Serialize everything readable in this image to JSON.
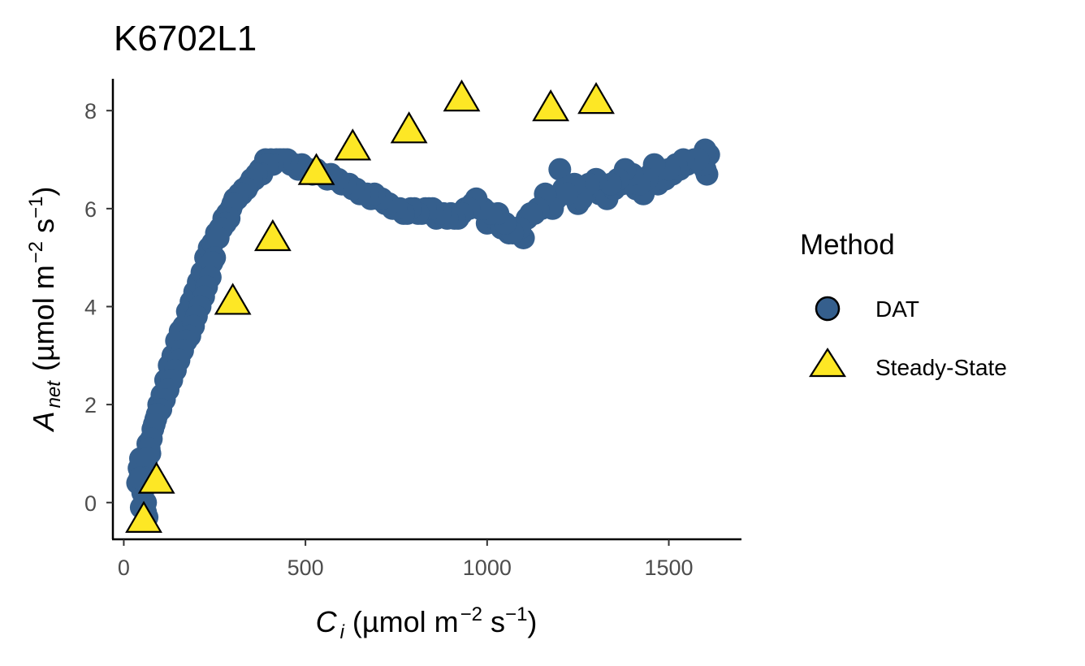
{
  "chart_data": {
    "type": "scatter",
    "title": "K6702L1",
    "xlabel": {
      "main": "C",
      "sub": "i",
      "units_pre": "(µmol m",
      "sup1": "−2",
      "units_mid": " s",
      "sup2": "−1",
      "units_post": ")"
    },
    "ylabel": {
      "main": "A",
      "sub": "net",
      "units_pre": "(µmol m",
      "sup1": "−2",
      "units_mid": " s",
      "sup2": "−1",
      "units_post": ")"
    },
    "xlim": [
      -30,
      1700
    ],
    "ylim": [
      -0.75,
      8.65
    ],
    "xticks": [
      0,
      500,
      1000,
      1500
    ],
    "xtick_labels": [
      "0",
      "500",
      "1000",
      "1500"
    ],
    "yticks": [
      0,
      2,
      4,
      6,
      8
    ],
    "ytick_labels": [
      "0",
      "2",
      "4",
      "6",
      "8"
    ],
    "grid": false,
    "legend": {
      "title": "Method",
      "position": "right"
    },
    "series": [
      {
        "name": "DAT",
        "marker": "circle",
        "color": "#355F8D",
        "x": [
          38,
          42,
          46,
          50,
          55,
          60,
          66,
          72,
          80,
          88,
          96,
          105,
          115,
          125,
          135,
          145,
          155,
          165,
          175,
          185,
          195,
          205,
          215,
          225,
          235,
          245,
          255,
          265,
          275,
          285,
          295,
          305,
          318,
          330,
          345,
          360,
          375,
          390,
          405,
          420,
          440,
          460,
          480,
          500,
          520,
          540,
          560,
          580,
          600,
          620,
          640,
          660,
          680,
          700,
          720,
          740,
          760,
          780,
          800,
          820,
          840,
          860,
          880,
          900,
          920,
          940,
          960,
          980,
          1000,
          1020,
          1040,
          1060,
          1080,
          1100,
          1110,
          1130,
          1150,
          1170,
          1190,
          1200,
          1210,
          1230,
          1250,
          1270,
          1290,
          1310,
          1330,
          1350,
          1370,
          1390,
          1410,
          1430,
          1450,
          1470,
          1490,
          1510,
          1530,
          1550,
          1570,
          1590,
          1600,
          1610
        ],
        "y": [
          0.4,
          0.7,
          0.9,
          0.6,
          0.3,
          0.0,
          1.2,
          1.0,
          1.5,
          1.7,
          2.0,
          2.2,
          2.5,
          2.8,
          3.0,
          3.3,
          3.5,
          3.6,
          3.9,
          4.1,
          4.3,
          4.5,
          4.7,
          5.0,
          5.2,
          5.3,
          5.5,
          5.6,
          5.8,
          5.9,
          6.0,
          6.2,
          6.3,
          6.4,
          6.5,
          6.6,
          6.8,
          7.0,
          7.0,
          7.0,
          7.0,
          6.9,
          6.8,
          6.8,
          6.7,
          6.7,
          6.6,
          6.6,
          6.5,
          6.5,
          6.4,
          6.3,
          6.2,
          6.2,
          6.1,
          6.0,
          6.0,
          5.9,
          6.0,
          5.9,
          6.0,
          5.8,
          5.9,
          5.9,
          5.8,
          6.0,
          6.1,
          6.0,
          5.7,
          5.8,
          5.6,
          5.5,
          5.6,
          5.4,
          5.8,
          5.9,
          6.0,
          6.1,
          6.2,
          6.8,
          6.4,
          6.3,
          6.1,
          6.4,
          6.5,
          6.3,
          6.2,
          6.4,
          6.5,
          6.6,
          6.4,
          6.3,
          6.7,
          6.5,
          6.6,
          6.7,
          6.8,
          6.9,
          7.0,
          6.9,
          6.8,
          7.1
        ],
        "extra_points": [
          [
            1600,
            7.2
          ],
          [
            1605,
            6.7
          ],
          [
            1595,
            6.9
          ],
          [
            1580,
            7.0
          ],
          [
            1540,
            7.0
          ],
          [
            1520,
            6.9
          ],
          [
            1500,
            6.8
          ],
          [
            1460,
            6.9
          ],
          [
            1440,
            6.6
          ],
          [
            1420,
            6.5
          ],
          [
            1400,
            6.7
          ],
          [
            1380,
            6.8
          ],
          [
            1360,
            6.6
          ],
          [
            1340,
            6.5
          ],
          [
            1300,
            6.6
          ],
          [
            1280,
            6.5
          ],
          [
            1260,
            6.2
          ],
          [
            1240,
            6.5
          ],
          [
            1220,
            6.3
          ],
          [
            1180,
            6.0
          ],
          [
            1160,
            6.3
          ],
          [
            1140,
            6.0
          ],
          [
            1120,
            5.9
          ],
          [
            1090,
            5.6
          ],
          [
            1070,
            5.5
          ],
          [
            1050,
            5.7
          ],
          [
            1030,
            5.9
          ],
          [
            1010,
            5.9
          ],
          [
            990,
            6.0
          ],
          [
            970,
            6.2
          ],
          [
            950,
            6.0
          ],
          [
            930,
            5.9
          ],
          [
            910,
            5.8
          ],
          [
            890,
            5.8
          ],
          [
            870,
            5.9
          ],
          [
            850,
            6.0
          ],
          [
            830,
            6.0
          ],
          [
            810,
            5.9
          ],
          [
            790,
            6.0
          ],
          [
            770,
            5.9
          ],
          [
            750,
            6.0
          ],
          [
            730,
            6.1
          ],
          [
            710,
            6.2
          ],
          [
            690,
            6.3
          ],
          [
            670,
            6.3
          ],
          [
            650,
            6.3
          ],
          [
            630,
            6.4
          ],
          [
            610,
            6.5
          ],
          [
            590,
            6.6
          ],
          [
            570,
            6.7
          ],
          [
            550,
            6.7
          ],
          [
            530,
            6.8
          ],
          [
            510,
            6.8
          ],
          [
            490,
            6.9
          ],
          [
            470,
            6.9
          ],
          [
            450,
            7.0
          ],
          [
            430,
            7.0
          ],
          [
            410,
            6.9
          ],
          [
            395,
            6.9
          ],
          [
            380,
            6.7
          ],
          [
            365,
            6.7
          ],
          [
            352,
            6.6
          ],
          [
            338,
            6.4
          ],
          [
            325,
            6.3
          ],
          [
            312,
            6.2
          ],
          [
            300,
            6.1
          ],
          [
            290,
            5.8
          ],
          [
            280,
            5.7
          ],
          [
            270,
            5.6
          ],
          [
            260,
            5.4
          ],
          [
            250,
            5.0
          ],
          [
            243,
            4.9
          ],
          [
            238,
            4.6
          ],
          [
            228,
            4.4
          ],
          [
            220,
            4.2
          ],
          [
            210,
            4.0
          ],
          [
            200,
            3.8
          ],
          [
            192,
            3.6
          ],
          [
            182,
            3.4
          ],
          [
            172,
            3.3
          ],
          [
            162,
            3.1
          ],
          [
            152,
            2.9
          ],
          [
            142,
            2.7
          ],
          [
            132,
            2.5
          ],
          [
            122,
            2.3
          ],
          [
            112,
            2.1
          ],
          [
            102,
            1.9
          ],
          [
            92,
            1.8
          ],
          [
            84,
            1.6
          ],
          [
            76,
            1.3
          ],
          [
            70,
            1.1
          ],
          [
            64,
            0.9
          ],
          [
            58,
            0.5
          ],
          [
            52,
            0.2
          ],
          [
            48,
            -0.1
          ],
          [
            60,
            -0.2
          ],
          [
            64,
            -0.3
          ],
          [
            44,
            0.5
          ]
        ]
      },
      {
        "name": "Steady-State",
        "marker": "triangle",
        "color": "#FDE725",
        "x": [
          55,
          90,
          300,
          410,
          530,
          630,
          785,
          930,
          1175,
          1300
        ],
        "y": [
          -0.3,
          0.5,
          4.15,
          5.45,
          6.8,
          7.3,
          7.65,
          8.3,
          8.1,
          8.25
        ]
      }
    ]
  }
}
